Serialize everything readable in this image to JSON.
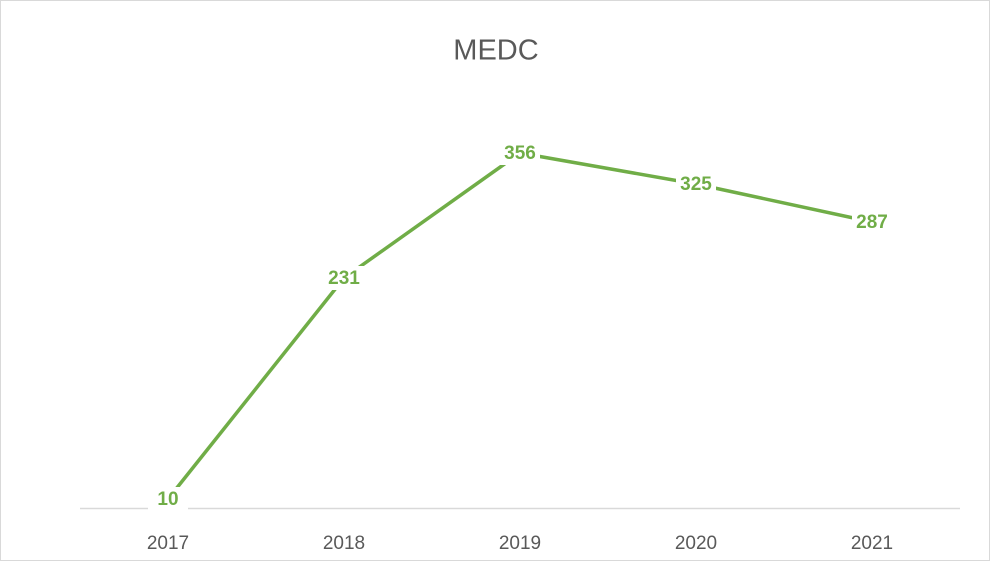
{
  "chart_data": {
    "type": "line",
    "title": "MEDC",
    "categories": [
      "2017",
      "2018",
      "2019",
      "2020",
      "2021"
    ],
    "series": [
      {
        "name": "MEDC",
        "color": "#70ad47",
        "values": [
          10,
          231,
          356,
          325,
          287
        ]
      }
    ],
    "ylim": [
      0,
      400
    ]
  }
}
